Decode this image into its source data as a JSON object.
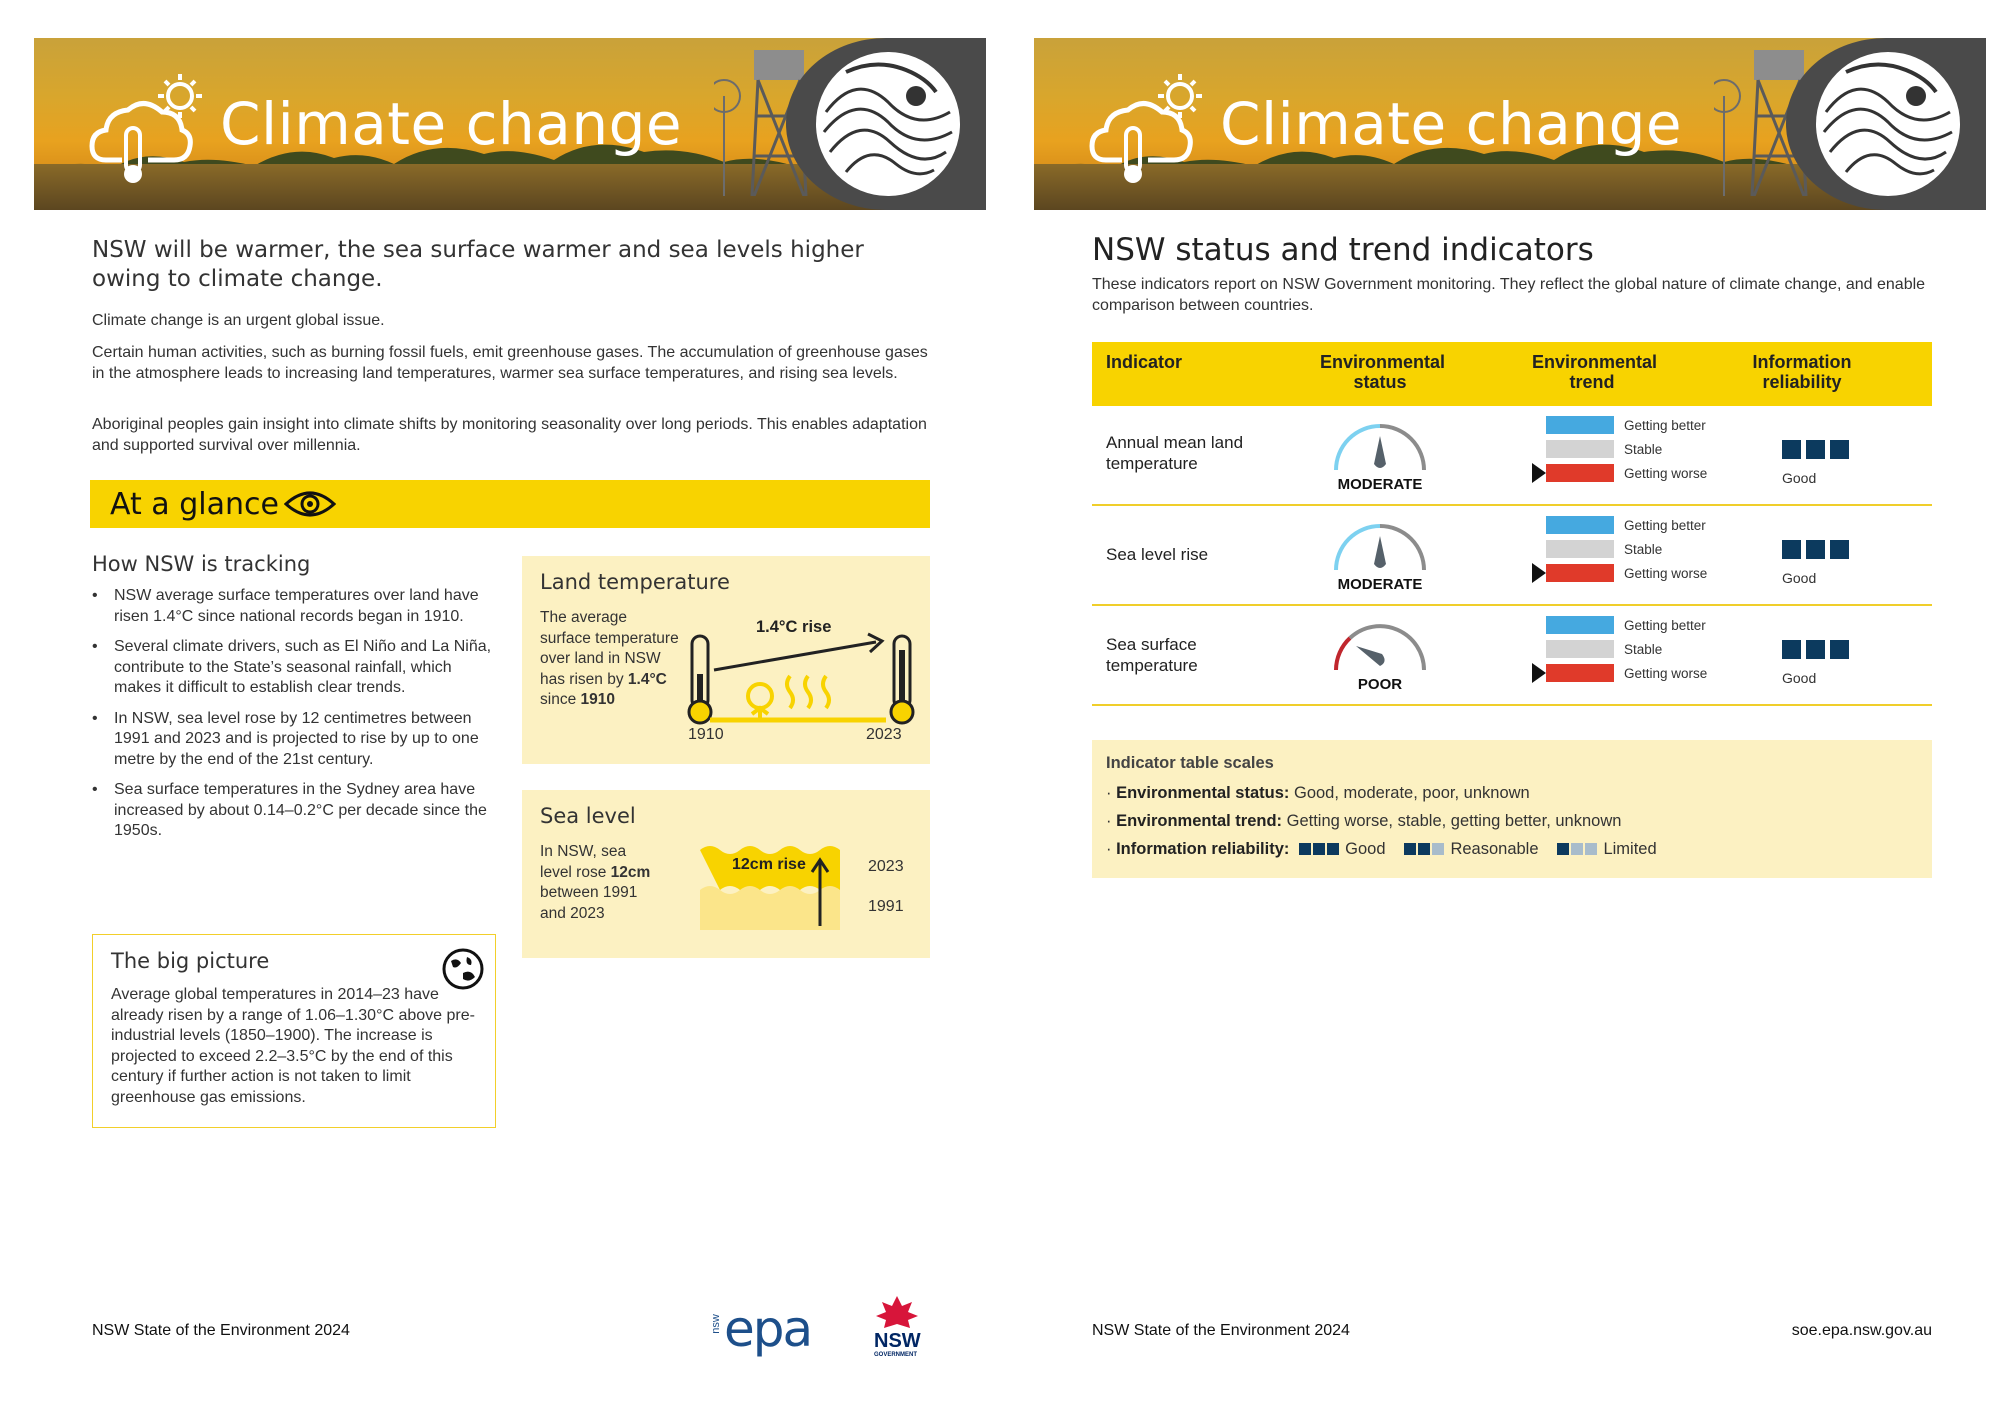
{
  "banner": {
    "title": "Climate change"
  },
  "left": {
    "lead": "NSW will be warmer, the sea surface warmer and sea levels higher owing to climate change.",
    "paragraphs": [
      "Climate change is an urgent global issue.",
      "Certain human activities, such as burning fossil fuels, emit greenhouse gases. The accumulation of greenhouse gases in the atmosphere leads to increasing land temperatures, warmer sea surface temperatures, and rising sea levels.",
      "Aboriginal peoples gain insight into climate shifts by monitoring seasonality over long periods. This enables adaptation and supported survival over millennia."
    ],
    "glance_title": "At a glance",
    "tracking_heading": "How NSW is tracking",
    "bullets": [
      "NSW average surface temperatures over land have risen 1.4°C since national records began in 1910.",
      "Several climate drivers, such as El Niño and La Niña, contribute to the State’s seasonal rainfall, which makes it difficult to establish clear trends.",
      "In NSW, sea level rose by 12 centimetres between 1991 and 2023 and is projected to rise by up to one metre by the end of the 21st century.",
      "Sea surface temperatures in the Sydney area have increased by about 0.14–0.2°C per decade since the 1950s."
    ],
    "big_picture": {
      "heading": "The big picture",
      "body": "Average global temperatures in 2014–23 have already risen by a range of 1.06–1.30°C above pre-industrial levels (1850–1900). The increase is projected to exceed 2.2–3.5°C by the end of this century if further action is not taken to limit greenhouse gas emissions."
    },
    "land_card": {
      "heading": "Land temperature",
      "body_pre": "The average surface temperature over land in NSW has risen by ",
      "body_value": "1.4°C",
      "body_mid": " since ",
      "body_year": "1910",
      "rise_label": "1.4°C rise",
      "year_start": "1910",
      "year_end": "2023"
    },
    "sea_card": {
      "heading": "Sea level",
      "body_pre": "In NSW, sea level rose ",
      "body_value": "12cm",
      "body_post": " between 1991 and 2023",
      "rise_label": "12cm rise",
      "year_end": "2023",
      "year_start": "1991"
    },
    "footer": "NSW State of the Environment 2024",
    "logos": {
      "epa_small": "nsw",
      "epa": "epa",
      "gov": "NSW",
      "gov_sub": "GOVERNMENT"
    }
  },
  "right": {
    "heading": "NSW status and trend indicators",
    "subtitle": "These indicators report on NSW Government monitoring. They reflect the global nature of climate change, and enable comparison between countries.",
    "table_headers": {
      "indicator": "Indicator",
      "status": "Environmental status",
      "trend": "Environmental trend",
      "reliability": "Information reliability"
    },
    "trend_labels": [
      "Getting better",
      "Stable",
      "Getting worse"
    ],
    "rows": [
      {
        "name": "Annual mean land temperature",
        "status": "MODERATE",
        "trend": "Getting worse",
        "reliability": "Good"
      },
      {
        "name": "Sea level rise",
        "status": "MODERATE",
        "trend": "Getting worse",
        "reliability": "Good"
      },
      {
        "name": "Sea surface temperature",
        "status": "POOR",
        "trend": "Getting worse",
        "reliability": "Good"
      }
    ],
    "scales": {
      "heading": "Indicator table scales",
      "status_label": "Environmental status:",
      "status_values": "Good, moderate, poor, unknown",
      "trend_label": "Environmental trend:",
      "trend_values": "Getting worse, stable, getting better, unknown",
      "reliability_label": "Information reliability:",
      "reliability_values": [
        "Good",
        "Reasonable",
        "Limited"
      ]
    },
    "footer": "NSW State of the Environment 2024",
    "url": "soe.epa.nsw.gov.au"
  },
  "colors": {
    "yellow": "#f8d300",
    "cream": "#fcf1c2",
    "navy": "#0c3a5e",
    "trend_better": "#45a9e0",
    "trend_stable": "#d3d3d3",
    "trend_worse": "#e03a2a"
  }
}
